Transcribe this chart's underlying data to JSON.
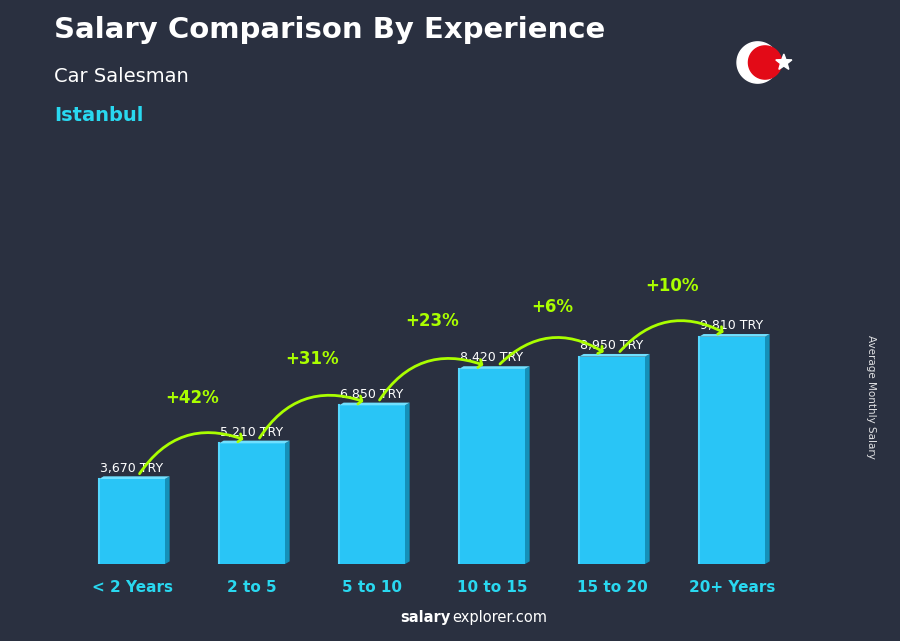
{
  "title": "Salary Comparison By Experience",
  "subtitle": "Car Salesman",
  "city": "Istanbul",
  "ylabel": "Average Monthly Salary",
  "categories": [
    "< 2 Years",
    "2 to 5",
    "5 to 10",
    "10 to 15",
    "15 to 20",
    "20+ Years"
  ],
  "values": [
    3670,
    5210,
    6850,
    8420,
    8950,
    9810
  ],
  "bar_color_main": "#29c5f6",
  "bar_color_light": "#55d8ff",
  "bar_color_dark": "#1590b8",
  "bar_color_top": "#70e0ff",
  "pct_labels": [
    "+42%",
    "+31%",
    "+23%",
    "+6%",
    "+10%"
  ],
  "salary_labels": [
    "3,670 TRY",
    "5,210 TRY",
    "6,850 TRY",
    "8,420 TRY",
    "8,950 TRY",
    "9,810 TRY"
  ],
  "pct_color": "#aaff00",
  "salary_color": "#ffffff",
  "title_color": "#ffffff",
  "subtitle_color": "#ffffff",
  "city_color": "#29d8f0",
  "bg_color": "#2a3040",
  "source_salary_color": "#ffffff",
  "source_explorer_color": "#aaddff",
  "figsize": [
    9.0,
    6.41
  ],
  "dpi": 100,
  "ylim_max": 13000,
  "bar_width": 0.55
}
